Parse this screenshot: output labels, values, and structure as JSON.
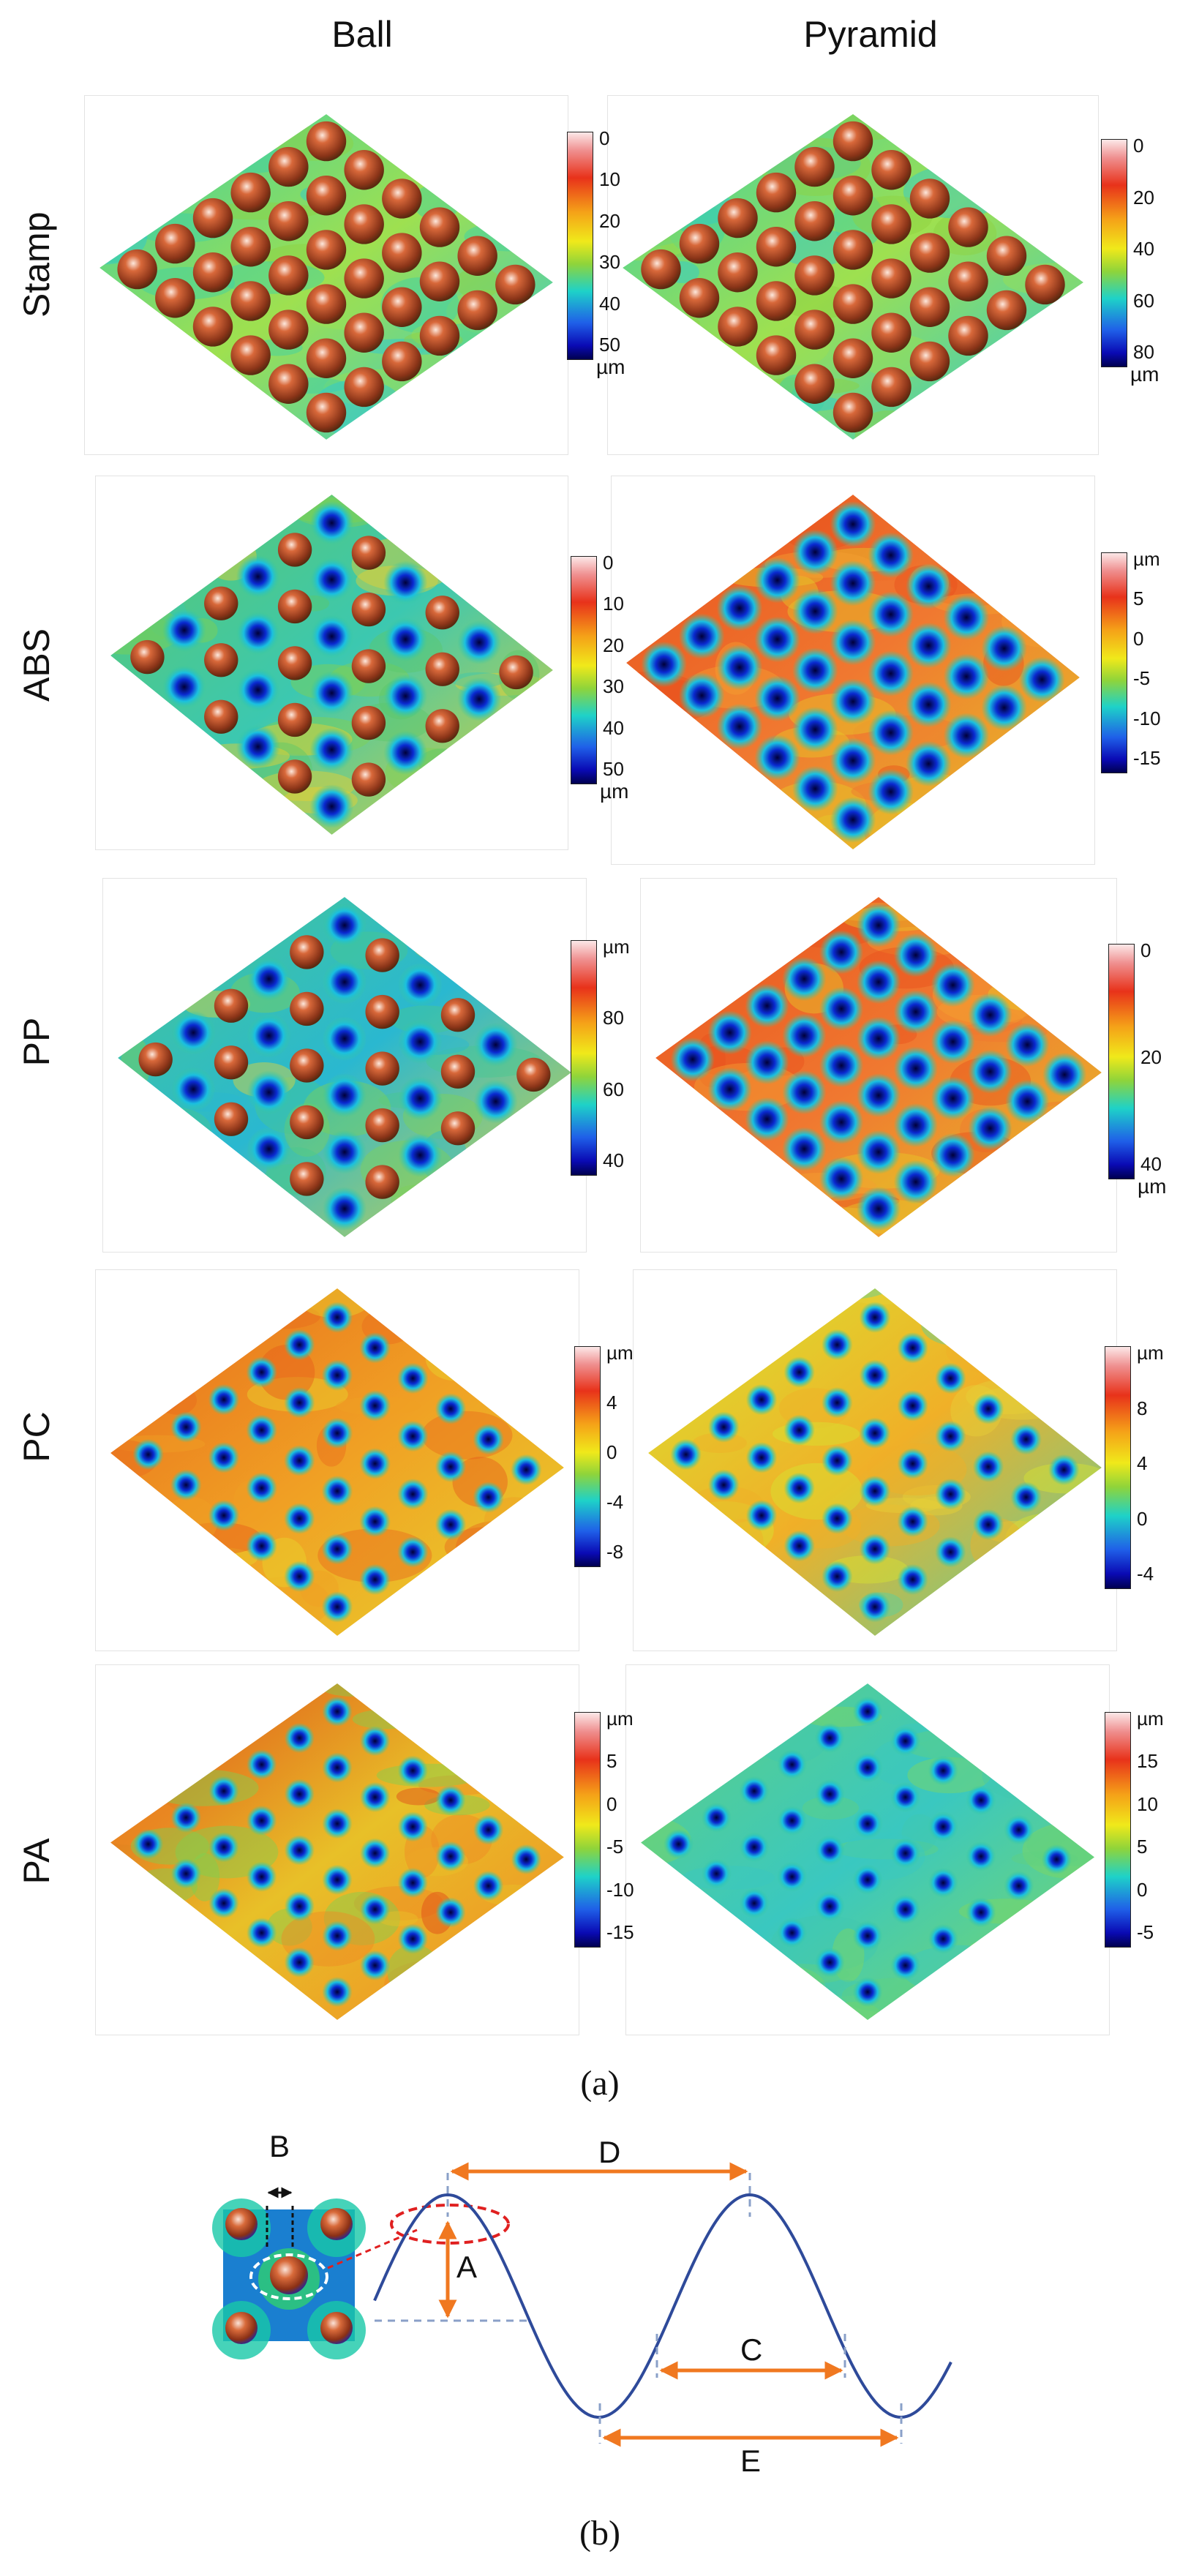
{
  "columns": [
    "Ball",
    "Pyramid"
  ],
  "rows": [
    {
      "label": "Stamp",
      "ball": {
        "ticks": [
          "0",
          "10",
          "20",
          "30",
          "40",
          "50"
        ],
        "unit": "µm",
        "unit_top": false
      },
      "pyramid": {
        "ticks": [
          "0",
          "20",
          "40",
          "60",
          "80"
        ],
        "unit": "µm",
        "unit_top": false
      }
    },
    {
      "label": "ABS",
      "ball": {
        "ticks": [
          "0",
          "10",
          "20",
          "30",
          "40",
          "50"
        ],
        "unit": "µm",
        "unit_top": false
      },
      "pyramid": {
        "ticks": [
          "µm",
          "5",
          "0",
          "-5",
          "-10",
          "-15"
        ],
        "unit": "",
        "unit_top": false
      }
    },
    {
      "label": "PP",
      "ball": {
        "ticks": [
          "µm",
          "80",
          "60",
          "40"
        ],
        "unit": "",
        "unit_top": false
      },
      "pyramid": {
        "ticks": [
          "0",
          "20",
          "40"
        ],
        "unit": "µm",
        "unit_top": false
      }
    },
    {
      "label": "PC",
      "ball": {
        "ticks": [
          "µm",
          "4",
          "0",
          "-4",
          "-8"
        ],
        "unit": "",
        "unit_top": false
      },
      "pyramid": {
        "ticks": [
          "µm",
          "8",
          "4",
          "0",
          "-4"
        ],
        "unit": "",
        "unit_top": false
      }
    },
    {
      "label": "PA",
      "ball": {
        "ticks": [
          "µm",
          "5",
          "0",
          "-5",
          "-10",
          "-15"
        ],
        "unit": "",
        "unit_top": false
      },
      "pyramid": {
        "ticks": [
          "µm",
          "15",
          "10",
          "5",
          "0",
          "-5"
        ],
        "unit": "",
        "unit_top": false
      }
    }
  ],
  "caption_a": "(a)",
  "caption_b": "(b)",
  "diagram_labels": {
    "A": "A",
    "B": "B",
    "C": "C",
    "D": "D",
    "E": "E"
  },
  "colors": {
    "arrow": "#f07820",
    "curve": "#2e4a9a",
    "dashed": "#8aa0c8",
    "ellipse": "#e02020"
  }
}
